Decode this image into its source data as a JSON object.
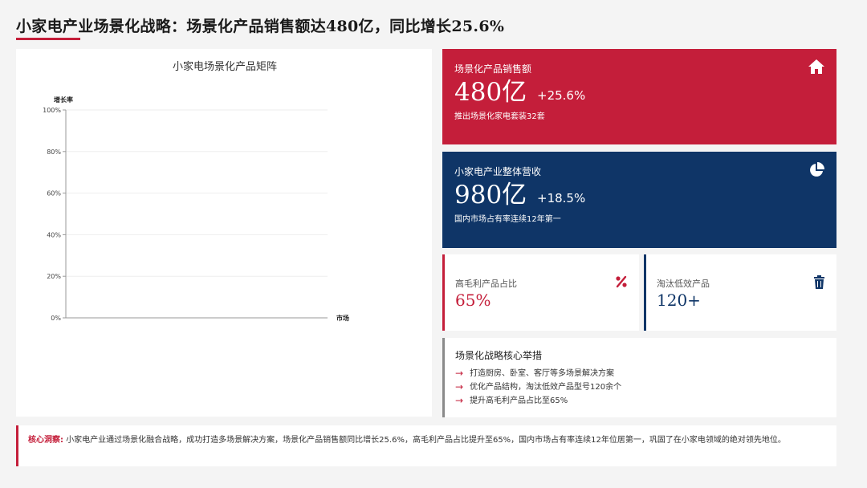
{
  "page": {
    "title": "小家电产业场景化战略：场景化产品销售额达480亿，同比增长25.6%"
  },
  "chart_data": {
    "type": "scatter",
    "title": "小家电场景化产品矩阵",
    "ylabel": "增长率",
    "xlabel": "市场",
    "ylim": [
      0,
      100
    ],
    "yticks": [
      "0%",
      "20%",
      "40%",
      "60%",
      "80%",
      "100%"
    ],
    "ytick_values": [
      0,
      20,
      40,
      60,
      80,
      100
    ],
    "series": []
  },
  "cards": {
    "sales": {
      "label": "场景化产品销售额",
      "value": "480亿",
      "change": "+25.6%",
      "sub": "推出场景化家电套装32套",
      "icon": "home-icon",
      "color": "#c41e3a"
    },
    "revenue": {
      "label": "小家电产业整体营收",
      "value": "980亿",
      "change": "+18.5%",
      "sub": "国内市场占有率连续12年第一",
      "icon": "pie-chart-icon",
      "color": "#0f3567"
    }
  },
  "stats": {
    "margin": {
      "label": "高毛利产品占比",
      "value": "65%",
      "icon": "percent-icon"
    },
    "eliminated": {
      "label": "淘汰低效产品",
      "value": "120+",
      "icon": "trash-icon"
    }
  },
  "measures": {
    "title": "场景化战略核心举措",
    "items": [
      "打造厨房、卧室、客厅等多场景解决方案",
      "优化产品结构，淘汰低效产品型号120余个",
      "提升高毛利产品占比至65%"
    ]
  },
  "insight": {
    "label": "核心洞察",
    "colon": ":",
    "text": "小家电产业通过场景化融合战略，成功打造多场景解决方案，场景化产品销售额同比增长25.6%，高毛利产品占比提升至65%，国内市场占有率连续12年位居第一，巩固了在小家电领域的绝对领先地位。"
  }
}
